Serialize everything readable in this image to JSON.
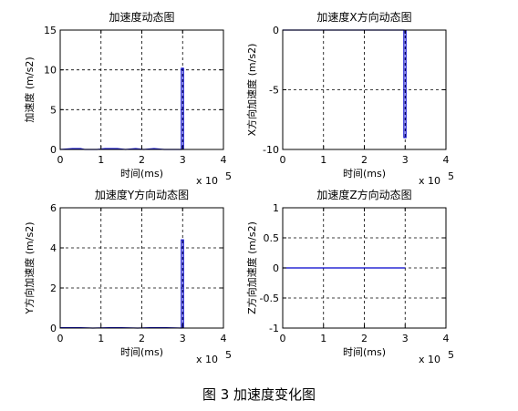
{
  "caption": "图 3  加速度变化图",
  "chart_data": [
    {
      "type": "line",
      "title": "加速度动态图",
      "xlabel": "时间(ms)",
      "ylabel": "加速度 (m/s2)",
      "x_multiplier_label": "x 10",
      "x_multiplier_exp": "5",
      "xlim": [
        0,
        4
      ],
      "ylim": [
        0,
        15
      ],
      "xticks": [
        "0",
        "1",
        "2",
        "3",
        "4"
      ],
      "yticks": [
        "0",
        "5",
        "10",
        "15"
      ],
      "grid": true,
      "color": "#0000cc",
      "series": [
        {
          "x": [
            0.0,
            0.3,
            0.5,
            0.6,
            0.9,
            1.1,
            1.4,
            1.6,
            1.85,
            2.05,
            2.3,
            2.55,
            2.8,
            2.97,
            2.97,
            3.02,
            3.02
          ],
          "y": [
            0.0,
            0.1,
            0.1,
            0.0,
            0.0,
            0.1,
            0.1,
            0.0,
            0.1,
            0.0,
            0.1,
            0.0,
            0.0,
            0.0,
            10.2,
            10.2,
            0.0
          ]
        }
      ]
    },
    {
      "type": "line",
      "title": "加速度X方向动态图",
      "xlabel": "时间(ms)",
      "ylabel": "X方向加速度 (m/s2)",
      "x_multiplier_label": "x 10",
      "x_multiplier_exp": "5",
      "xlim": [
        0,
        4
      ],
      "ylim": [
        -10,
        0
      ],
      "xticks": [
        "0",
        "1",
        "2",
        "3",
        "4"
      ],
      "yticks": [
        "-10",
        "-5",
        "0"
      ],
      "grid": true,
      "color": "#0000cc",
      "series": [
        {
          "x": [
            0.0,
            2.97,
            2.97,
            3.02,
            3.02
          ],
          "y": [
            0.0,
            0.0,
            -9.0,
            -9.0,
            0.0
          ]
        }
      ]
    },
    {
      "type": "line",
      "title": "加速度Y方向动态图",
      "xlabel": "时间(ms)",
      "ylabel": "Y方向加速度 (m/s2)",
      "x_multiplier_label": "x 10",
      "x_multiplier_exp": "5",
      "xlim": [
        0,
        4
      ],
      "ylim": [
        0,
        6
      ],
      "xticks": [
        "0",
        "1",
        "2",
        "3",
        "4"
      ],
      "yticks": [
        "0",
        "2",
        "4",
        "6"
      ],
      "grid": true,
      "color": "#0000cc",
      "series": [
        {
          "x": [
            0.0,
            0.5,
            0.8,
            1.2,
            1.5,
            1.9,
            2.2,
            2.6,
            2.97,
            2.97,
            3.02,
            3.02
          ],
          "y": [
            0.02,
            0.02,
            0.0,
            0.02,
            0.02,
            0.0,
            0.02,
            0.02,
            0.0,
            4.4,
            4.4,
            0.0
          ]
        }
      ]
    },
    {
      "type": "line",
      "title": "加速度Z方向动态图",
      "xlabel": "时间(ms)",
      "ylabel": "Z方向加速度 (m/s2)",
      "x_multiplier_label": "x 10",
      "x_multiplier_exp": "5",
      "xlim": [
        0,
        4
      ],
      "ylim": [
        -1,
        1
      ],
      "xticks": [
        "0",
        "1",
        "2",
        "3",
        "4"
      ],
      "yticks": [
        "-1",
        "-0.5",
        "0",
        "0.5",
        "1"
      ],
      "grid": true,
      "color": "#0000cc",
      "series": [
        {
          "x": [
            0.0,
            3.0
          ],
          "y": [
            0.0,
            0.0
          ]
        }
      ]
    }
  ]
}
